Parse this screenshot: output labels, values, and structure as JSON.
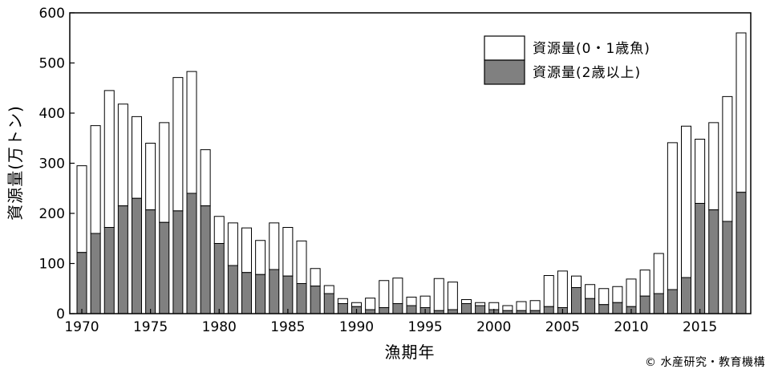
{
  "chart_data": {
    "type": "bar",
    "stacked": true,
    "xlabel": "漁期年",
    "ylabel": "資源量(万トン)",
    "ylim": [
      0,
      600
    ],
    "yticks": [
      0,
      100,
      200,
      300,
      400,
      500,
      600
    ],
    "xticks": [
      1970,
      1975,
      1980,
      1985,
      1990,
      1995,
      2000,
      2005,
      2010,
      2015
    ],
    "grid": false,
    "legend_position": "top-right",
    "categories": [
      1970,
      1971,
      1972,
      1973,
      1974,
      1975,
      1976,
      1977,
      1978,
      1979,
      1980,
      1981,
      1982,
      1983,
      1984,
      1985,
      1986,
      1987,
      1988,
      1989,
      1990,
      1991,
      1992,
      1993,
      1994,
      1995,
      1996,
      1997,
      1998,
      1999,
      2000,
      2001,
      2002,
      2003,
      2004,
      2005,
      2006,
      2007,
      2008,
      2009,
      2010,
      2011,
      2012,
      2013,
      2014,
      2015,
      2016,
      2017,
      2018
    ],
    "series": [
      {
        "name": "資源量(2歳以上)",
        "color": "#808080",
        "values": [
          122,
          160,
          172,
          215,
          230,
          207,
          182,
          205,
          240,
          215,
          140,
          96,
          82,
          78,
          88,
          75,
          60,
          55,
          40,
          20,
          14,
          8,
          12,
          20,
          16,
          12,
          6,
          8,
          20,
          16,
          8,
          6,
          6,
          6,
          14,
          12,
          52,
          30,
          18,
          22,
          14,
          35,
          40,
          48,
          72,
          220,
          207,
          184,
          242
        ]
      },
      {
        "name": "資源量(0・1歳魚)",
        "color": "#ffffff",
        "values": [
          173,
          215,
          273,
          203,
          163,
          133,
          199,
          266,
          243,
          112,
          54,
          85,
          89,
          68,
          93,
          97,
          85,
          35,
          16,
          10,
          8,
          23,
          54,
          51,
          17,
          23,
          64,
          55,
          8,
          6,
          14,
          10,
          18,
          20,
          62,
          73,
          23,
          28,
          32,
          32,
          55,
          52,
          80,
          293,
          302,
          128,
          174,
          249,
          318
        ]
      }
    ]
  },
  "footer": {
    "credit": "© 水産研究・教育機構"
  }
}
